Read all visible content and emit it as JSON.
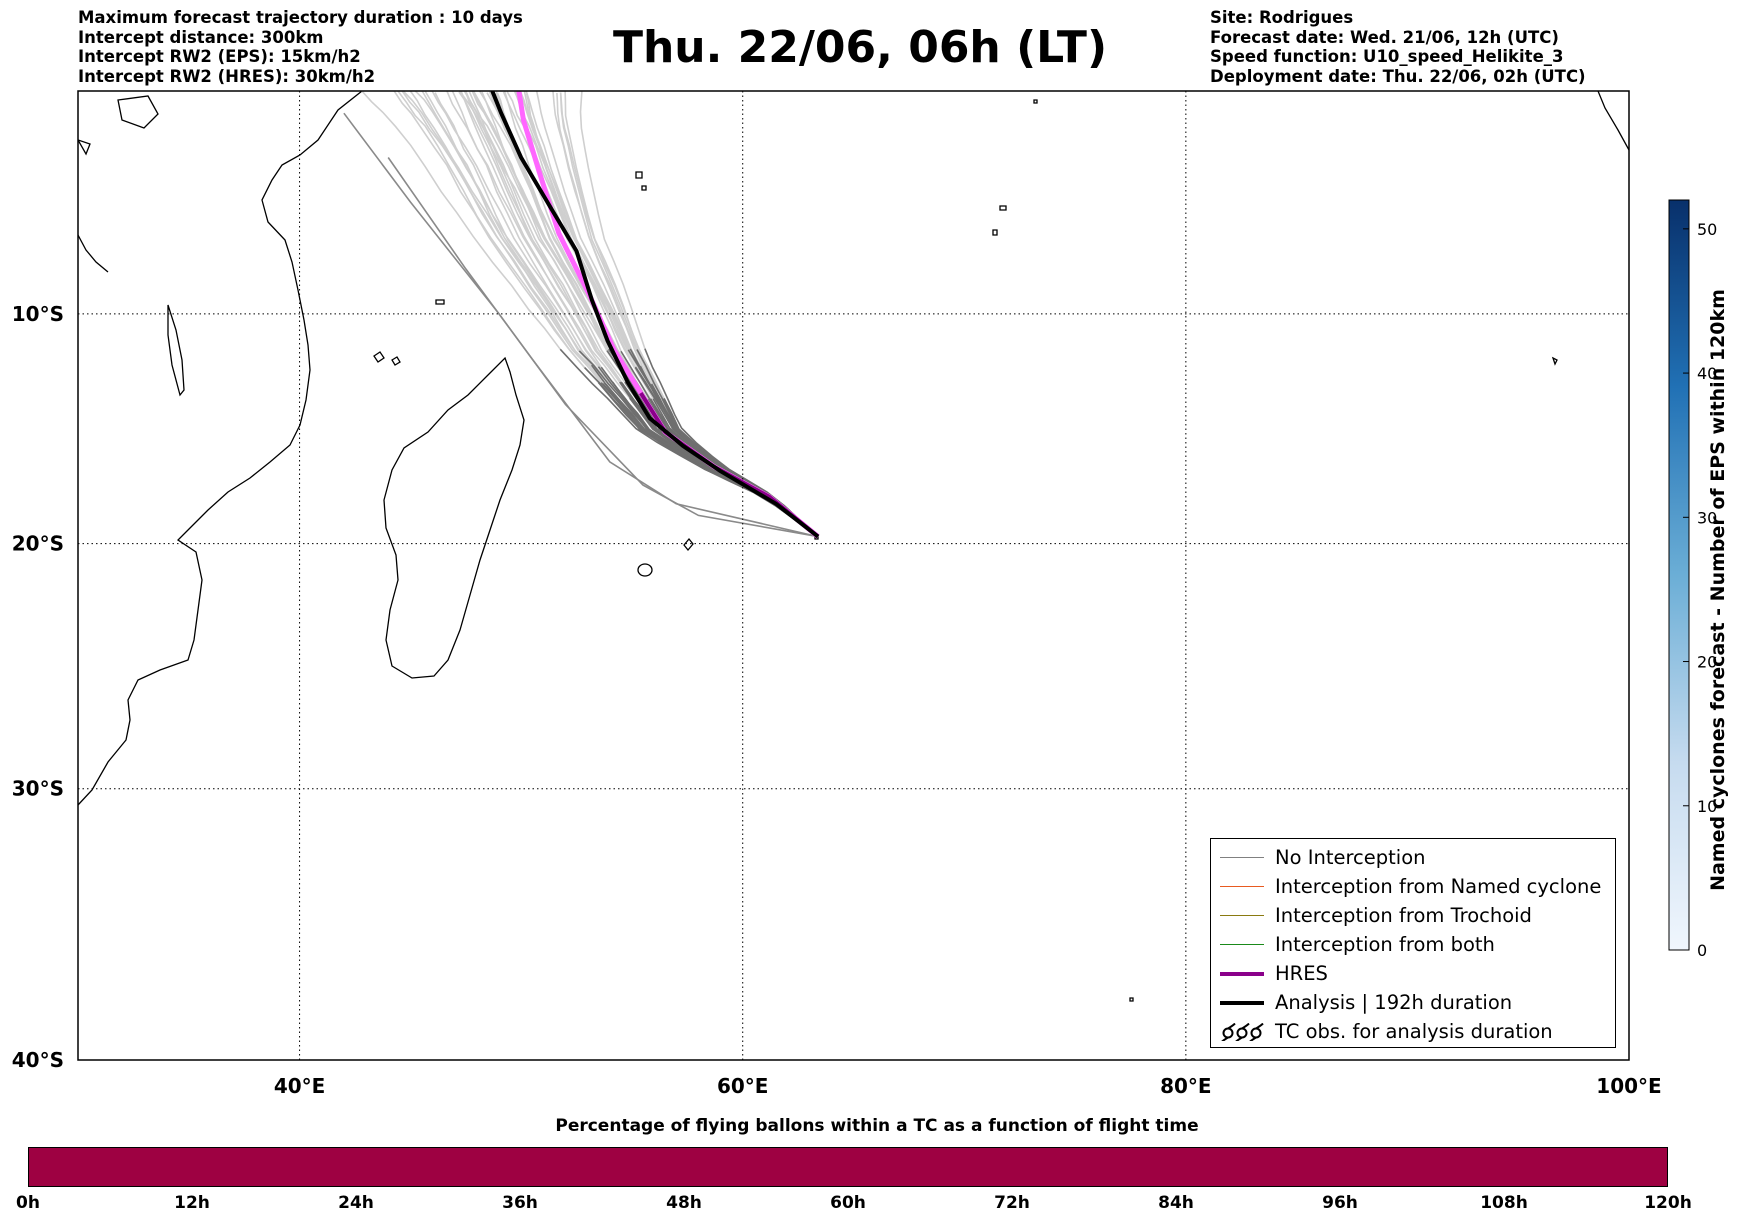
{
  "header": {
    "left_lines": [
      "Maximum forecast trajectory duration : 10 days",
      "Intercept distance: 300km",
      "Intercept RW2 (EPS):  15km/h2",
      "Intercept RW2 (HRES): 30km/h2"
    ],
    "title": "Thu. 22/06, 06h (LT)",
    "right_lines": [
      "Site: Rodrigues",
      "Forecast date: Wed. 21/06, 12h (UTC)",
      "Speed function: U10_speed_Helikite_3",
      "Deployment date: Thu. 22/06, 02h (UTC)"
    ]
  },
  "map": {
    "lon_range": [
      30,
      100
    ],
    "lat_range": [
      -40,
      0
    ],
    "x_ticks": [
      {
        "lon": 40,
        "label": "40°E"
      },
      {
        "lon": 60,
        "label": "60°E"
      },
      {
        "lon": 80,
        "label": "80°E"
      },
      {
        "lon": 100,
        "label": "100°E"
      }
    ],
    "y_ticks": [
      {
        "lat": -10,
        "label": "10°S"
      },
      {
        "lat": -20,
        "label": "20°S"
      },
      {
        "lat": -30,
        "label": "30°S"
      },
      {
        "lat": -40,
        "label": "40°S"
      }
    ],
    "grid": "dotted",
    "deployment_site": {
      "lon": 63.4,
      "lat": -19.7
    },
    "analysis_track": [
      [
        63.4,
        -19.7
      ],
      [
        61.5,
        -18.3
      ],
      [
        59,
        -16.9
      ],
      [
        57.3,
        -15.8
      ],
      [
        55.8,
        -14.6
      ],
      [
        54.8,
        -13.0
      ],
      [
        53.9,
        -11.2
      ],
      [
        53.2,
        -9.4
      ],
      [
        52.5,
        -7.2
      ],
      [
        51.3,
        -5.2
      ],
      [
        50.0,
        -3.0
      ],
      [
        49.1,
        -1.0
      ],
      [
        48.7,
        0
      ]
    ],
    "hres_track": [
      [
        63.4,
        -19.7
      ],
      [
        61.2,
        -18.0
      ],
      [
        58.7,
        -16.7
      ],
      [
        56.5,
        -15.2
      ],
      [
        55.4,
        -13.5
      ],
      [
        54.2,
        -11.6
      ],
      [
        53.1,
        -9.2
      ],
      [
        51.7,
        -6.4
      ],
      [
        50.8,
        -3.6
      ],
      [
        50.1,
        -1.3
      ],
      [
        49.9,
        0
      ]
    ]
  },
  "legend": {
    "items": [
      {
        "label": "No Interception",
        "color": "#808080",
        "width": 1.5,
        "kind": "line"
      },
      {
        "label": "Interception from Named cyclone",
        "color": "#e85a20",
        "width": 1.5,
        "kind": "line"
      },
      {
        "label": "Interception from Trochoid",
        "color": "#8a7a10",
        "width": 1.5,
        "kind": "line"
      },
      {
        "label": "Interception from both",
        "color": "#1a8a1a",
        "width": 1.5,
        "kind": "line"
      },
      {
        "label": "HRES",
        "color": "#8a008a",
        "width": 4,
        "kind": "line"
      },
      {
        "label": "Analysis | 192h duration",
        "color": "#000000",
        "width": 4,
        "kind": "line"
      },
      {
        "label": "TC obs. for analysis duration",
        "color": "#000000",
        "width": 0,
        "kind": "cyclone"
      }
    ]
  },
  "colorbar": {
    "title": "Named cyclones forecast - Number of EPS within 120km",
    "min": 0,
    "max": 52,
    "ticks": [
      0,
      10,
      20,
      30,
      40,
      50
    ],
    "tick_labels": [
      "0",
      "10",
      "20",
      "30",
      "40",
      "50"
    ],
    "color_low": "#f0f6fd",
    "color_high": "#08306b"
  },
  "bottom_bar": {
    "title": "Percentage of flying ballons within a TC as a function of flight time",
    "ticks": [
      "0h",
      "12h",
      "24h",
      "36h",
      "48h",
      "60h",
      "72h",
      "84h",
      "96h",
      "108h",
      "120h"
    ],
    "color": "#9e0142"
  }
}
